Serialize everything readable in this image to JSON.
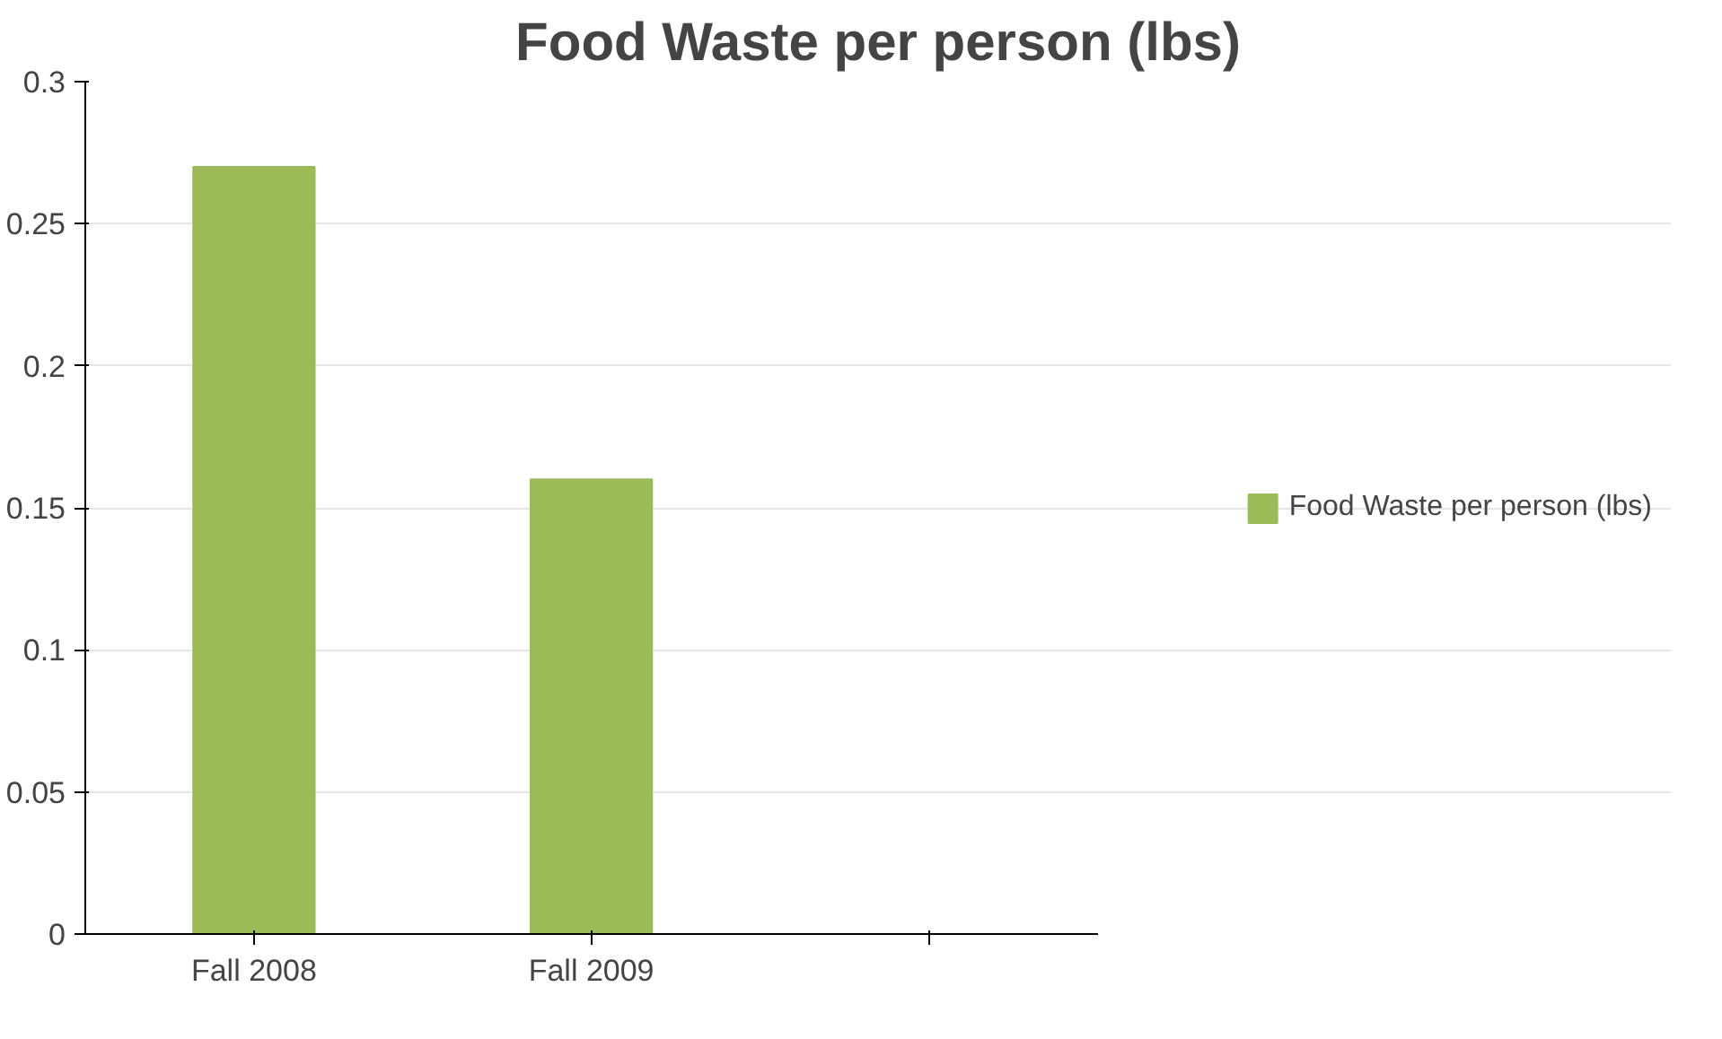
{
  "chart_data": {
    "type": "bar",
    "title": "Food Waste per person (lbs)",
    "categories": [
      "Fall 2008",
      "Fall 2009",
      null
    ],
    "series": [
      {
        "name": "Food Waste per person (lbs)",
        "color": "#9bbb59",
        "values": [
          0.27,
          0.16,
          null
        ]
      }
    ],
    "ylim": [
      0,
      0.3
    ],
    "yticks": [
      0,
      0.05,
      0.1,
      0.15,
      0.2,
      0.25,
      0.3
    ],
    "grid": "y",
    "legend": "right"
  }
}
